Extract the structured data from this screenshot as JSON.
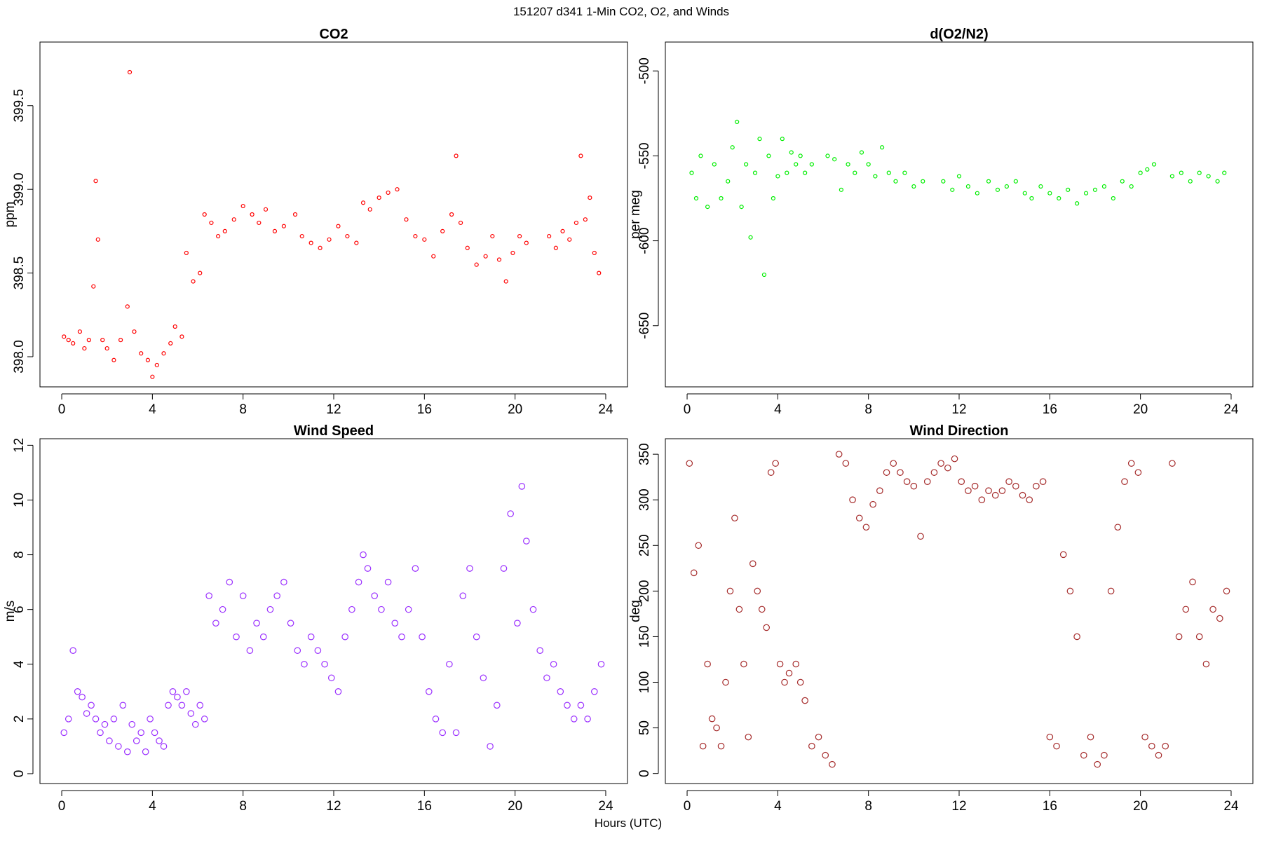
{
  "figure": {
    "title": "151207   d341   1-Min CO2, O2, and Winds",
    "shared_xlabel": "Hours (UTC)"
  },
  "chart_data": [
    {
      "id": "co2",
      "type": "scatter",
      "title": "CO2",
      "xlabel": "",
      "ylabel": "ppm",
      "xlim": [
        -0.96,
        24.96
      ],
      "ylim": [
        397.82,
        399.88
      ],
      "xticks": [
        0,
        4,
        8,
        12,
        16,
        20,
        24
      ],
      "yticks": [
        398.0,
        398.5,
        399.0,
        399.5
      ],
      "ytick_labels": [
        "398.0",
        "398.5",
        "399.0",
        "399.5"
      ],
      "color": "#ff0000",
      "marker": "small-open-circle",
      "series": [
        {
          "name": "CO2",
          "x": [
            0.1,
            0.3,
            0.5,
            0.8,
            1.0,
            1.2,
            1.4,
            1.5,
            1.6,
            1.8,
            2.0,
            2.3,
            2.6,
            2.9,
            3.0,
            3.2,
            3.5,
            3.8,
            4.0,
            4.2,
            4.5,
            4.8,
            5.0,
            5.3,
            5.5,
            5.8,
            6.1,
            6.3,
            6.6,
            6.9,
            7.2,
            7.6,
            8.0,
            8.4,
            8.7,
            9.0,
            9.4,
            9.8,
            10.3,
            10.6,
            11.0,
            11.4,
            11.8,
            12.2,
            12.6,
            13.0,
            13.3,
            13.6,
            14.0,
            14.4,
            14.8,
            15.2,
            15.6,
            16.0,
            16.4,
            16.8,
            17.2,
            17.4,
            17.6,
            17.9,
            18.3,
            18.7,
            19.0,
            19.3,
            19.6,
            19.9,
            20.2,
            20.5,
            21.5,
            21.8,
            22.1,
            22.4,
            22.7,
            22.9,
            23.1,
            23.3,
            23.5,
            23.7
          ],
          "y": [
            398.12,
            398.1,
            398.08,
            398.15,
            398.05,
            398.1,
            398.42,
            399.05,
            398.7,
            398.1,
            398.05,
            397.98,
            398.1,
            398.3,
            399.7,
            398.15,
            398.02,
            397.98,
            397.88,
            397.95,
            398.02,
            398.08,
            398.18,
            398.12,
            398.62,
            398.45,
            398.5,
            398.85,
            398.8,
            398.72,
            398.75,
            398.82,
            398.9,
            398.85,
            398.8,
            398.88,
            398.75,
            398.78,
            398.85,
            398.72,
            398.68,
            398.65,
            398.7,
            398.78,
            398.72,
            398.68,
            398.92,
            398.88,
            398.95,
            398.98,
            399.0,
            398.82,
            398.72,
            398.7,
            398.6,
            398.75,
            398.85,
            399.2,
            398.8,
            398.65,
            398.55,
            398.6,
            398.72,
            398.58,
            398.45,
            398.62,
            398.72,
            398.68,
            398.72,
            398.65,
            398.75,
            398.7,
            398.8,
            399.2,
            398.82,
            398.95,
            398.62,
            398.5
          ]
        }
      ]
    },
    {
      "id": "o2n2",
      "type": "scatter",
      "title": "d(O2/N2)",
      "xlabel": "",
      "ylabel": "per meg",
      "xlim": [
        -0.96,
        24.96
      ],
      "ylim": [
        -686,
        -483
      ],
      "xticks": [
        0,
        4,
        8,
        12,
        16,
        20,
        24
      ],
      "yticks": [
        -650,
        -600,
        -550,
        -500
      ],
      "ytick_labels": [
        "-650",
        "-600",
        "-550",
        "-500"
      ],
      "color": "#00ee00",
      "marker": "small-open-circle",
      "series": [
        {
          "name": "d(O2/N2)",
          "x": [
            0.2,
            0.4,
            0.6,
            0.9,
            1.2,
            1.5,
            1.8,
            2.0,
            2.2,
            2.4,
            2.6,
            2.8,
            3.0,
            3.2,
            3.4,
            3.6,
            3.8,
            4.0,
            4.2,
            4.4,
            4.6,
            4.8,
            5.0,
            5.2,
            5.5,
            6.2,
            6.5,
            6.8,
            7.1,
            7.4,
            7.7,
            8.0,
            8.3,
            8.6,
            8.9,
            9.2,
            9.6,
            10.0,
            10.4,
            11.3,
            11.7,
            12.0,
            12.4,
            12.8,
            13.3,
            13.7,
            14.1,
            14.5,
            14.9,
            15.2,
            15.6,
            16.0,
            16.4,
            16.8,
            17.2,
            17.6,
            18.0,
            18.4,
            18.8,
            19.2,
            19.6,
            20.0,
            20.3,
            20.6,
            21.4,
            21.8,
            22.2,
            22.6,
            23.0,
            23.4,
            23.7
          ],
          "y": [
            -560,
            -575,
            -550,
            -580,
            -555,
            -575,
            -565,
            -545,
            -530,
            -580,
            -555,
            -598,
            -560,
            -540,
            -620,
            -550,
            -575,
            -562,
            -540,
            -560,
            -548,
            -555,
            -550,
            -560,
            -555,
            -550,
            -552,
            -570,
            -555,
            -560,
            -548,
            -555,
            -562,
            -545,
            -560,
            -565,
            -560,
            -568,
            -565,
            -565,
            -570,
            -562,
            -568,
            -572,
            -565,
            -570,
            -568,
            -565,
            -572,
            -575,
            -568,
            -572,
            -575,
            -570,
            -578,
            -572,
            -570,
            -568,
            -575,
            -565,
            -568,
            -560,
            -558,
            -555,
            -562,
            -560,
            -565,
            -560,
            -562,
            -565,
            -560
          ]
        }
      ]
    },
    {
      "id": "wind-speed",
      "type": "scatter",
      "title": "Wind Speed",
      "xlabel": "",
      "ylabel": "m/s",
      "xlim": [
        -0.96,
        24.96
      ],
      "ylim": [
        -0.36,
        12.24
      ],
      "xticks": [
        0,
        4,
        8,
        12,
        16,
        20,
        24
      ],
      "yticks": [
        0,
        2,
        4,
        6,
        8,
        10,
        12
      ],
      "ytick_labels": [
        "0",
        "2",
        "4",
        "6",
        "8",
        "10",
        "12"
      ],
      "color": "#9b30ff",
      "marker": "large-open-circle",
      "series": [
        {
          "name": "Wind Speed",
          "x": [
            0.1,
            0.3,
            0.5,
            0.7,
            0.9,
            1.1,
            1.3,
            1.5,
            1.7,
            1.9,
            2.1,
            2.3,
            2.5,
            2.7,
            2.9,
            3.1,
            3.3,
            3.5,
            3.7,
            3.9,
            4.1,
            4.3,
            4.5,
            4.7,
            4.9,
            5.1,
            5.3,
            5.5,
            5.7,
            5.9,
            6.1,
            6.3,
            6.5,
            6.8,
            7.1,
            7.4,
            7.7,
            8.0,
            8.3,
            8.6,
            8.9,
            9.2,
            9.5,
            9.8,
            10.1,
            10.4,
            10.7,
            11.0,
            11.3,
            11.6,
            11.9,
            12.2,
            12.5,
            12.8,
            13.1,
            13.3,
            13.5,
            13.8,
            14.1,
            14.4,
            14.7,
            15.0,
            15.3,
            15.6,
            15.9,
            16.2,
            16.5,
            16.8,
            17.1,
            17.4,
            17.7,
            18.0,
            18.3,
            18.6,
            18.9,
            19.2,
            19.5,
            19.8,
            20.1,
            20.3,
            20.5,
            20.8,
            21.1,
            21.4,
            21.7,
            22.0,
            22.3,
            22.6,
            22.9,
            23.2,
            23.5,
            23.8
          ],
          "y": [
            1.5,
            2.0,
            4.5,
            3.0,
            2.8,
            2.2,
            2.5,
            2.0,
            1.5,
            1.8,
            1.2,
            2.0,
            1.0,
            2.5,
            0.8,
            1.8,
            1.2,
            1.5,
            0.8,
            2.0,
            1.5,
            1.2,
            1.0,
            2.5,
            3.0,
            2.8,
            2.5,
            3.0,
            2.2,
            1.8,
            2.5,
            2.0,
            6.5,
            5.5,
            6.0,
            7.0,
            5.0,
            6.5,
            4.5,
            5.5,
            5.0,
            6.0,
            6.5,
            7.0,
            5.5,
            4.5,
            4.0,
            5.0,
            4.5,
            4.0,
            3.5,
            3.0,
            5.0,
            6.0,
            7.0,
            8.0,
            7.5,
            6.5,
            6.0,
            7.0,
            5.5,
            5.0,
            6.0,
            7.5,
            5.0,
            3.0,
            2.0,
            1.5,
            4.0,
            1.5,
            6.5,
            7.5,
            5.0,
            3.5,
            1.0,
            2.5,
            7.5,
            9.5,
            5.5,
            10.5,
            8.5,
            6.0,
            4.5,
            3.5,
            4.0,
            3.0,
            2.5,
            2.0,
            2.5,
            2.0,
            3.0,
            4.0
          ]
        }
      ]
    },
    {
      "id": "wind-direction",
      "type": "scatter",
      "title": "Wind Direction",
      "xlabel": "",
      "ylabel": "deg",
      "xlim": [
        -0.96,
        24.96
      ],
      "ylim": [
        -11,
        367
      ],
      "xticks": [
        0,
        4,
        8,
        12,
        16,
        20,
        24
      ],
      "yticks": [
        0,
        50,
        100,
        150,
        200,
        250,
        300,
        350
      ],
      "ytick_labels": [
        "0",
        "50",
        "100",
        "150",
        "200",
        "250",
        "300",
        "350"
      ],
      "color": "#a52a2a",
      "marker": "large-open-circle",
      "series": [
        {
          "name": "Wind Direction",
          "x": [
            0.1,
            0.3,
            0.5,
            0.7,
            0.9,
            1.1,
            1.3,
            1.5,
            1.7,
            1.9,
            2.1,
            2.3,
            2.5,
            2.7,
            2.9,
            3.1,
            3.3,
            3.5,
            3.7,
            3.9,
            4.1,
            4.3,
            4.5,
            4.8,
            5.0,
            5.2,
            5.5,
            5.8,
            6.1,
            6.4,
            6.7,
            7.0,
            7.3,
            7.6,
            7.9,
            8.2,
            8.5,
            8.8,
            9.1,
            9.4,
            9.7,
            10.0,
            10.3,
            10.6,
            10.9,
            11.2,
            11.5,
            11.8,
            12.1,
            12.4,
            12.7,
            13.0,
            13.3,
            13.6,
            13.9,
            14.2,
            14.5,
            14.8,
            15.1,
            15.4,
            15.7,
            16.0,
            16.3,
            16.6,
            16.9,
            17.2,
            17.5,
            17.8,
            18.1,
            18.4,
            18.7,
            19.0,
            19.3,
            19.6,
            19.9,
            20.2,
            20.5,
            20.8,
            21.1,
            21.4,
            21.7,
            22.0,
            22.3,
            22.6,
            22.9,
            23.2,
            23.5,
            23.8
          ],
          "y": [
            340,
            220,
            250,
            30,
            120,
            60,
            50,
            30,
            100,
            200,
            280,
            180,
            120,
            40,
            230,
            200,
            180,
            160,
            330,
            340,
            120,
            100,
            110,
            120,
            100,
            80,
            30,
            40,
            20,
            10,
            350,
            340,
            300,
            280,
            270,
            295,
            310,
            330,
            340,
            330,
            320,
            315,
            260,
            320,
            330,
            340,
            335,
            345,
            320,
            310,
            315,
            300,
            310,
            305,
            310,
            320,
            315,
            305,
            300,
            315,
            320,
            40,
            30,
            240,
            200,
            150,
            20,
            40,
            10,
            20,
            200,
            270,
            320,
            340,
            330,
            40,
            30,
            20,
            30,
            340,
            150,
            180,
            210,
            150,
            120,
            180,
            170,
            200
          ]
        }
      ]
    }
  ]
}
